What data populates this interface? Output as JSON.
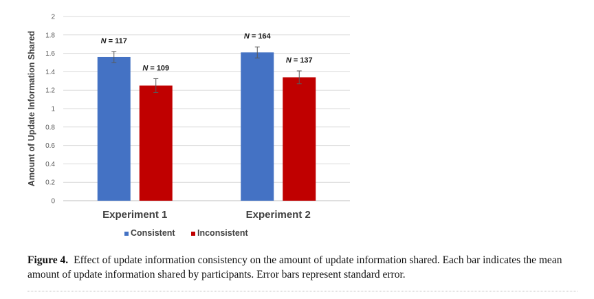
{
  "chart_data": {
    "type": "bar",
    "title": "",
    "xlabel": "",
    "ylabel": "Amount of Update Information Shared",
    "ylim": [
      0,
      2
    ],
    "yticks": [
      0,
      0.2,
      0.4,
      0.6,
      0.8,
      1,
      1.2,
      1.4,
      1.6,
      1.8,
      2
    ],
    "ytick_labels": [
      "0",
      "0.2",
      "0.4",
      "0.6",
      "0.8",
      "1",
      "1.2",
      "1.4",
      "1.6",
      "1.8",
      "2"
    ],
    "grid": true,
    "legend_position": "bottom",
    "categories": [
      "Experiment 1",
      "Experiment 2"
    ],
    "series": [
      {
        "name": "Consistent",
        "color": "#4472C4",
        "values": [
          1.56,
          1.61
        ],
        "errors": [
          0.06,
          0.06
        ],
        "labels": [
          "N = 117",
          "N = 164"
        ]
      },
      {
        "name": "Inconsistent",
        "color": "#C00000",
        "values": [
          1.25,
          1.34
        ],
        "errors": [
          0.075,
          0.07
        ],
        "labels": [
          "N = 109",
          "N = 137"
        ]
      }
    ]
  },
  "caption": {
    "figure_number": "Figure 4.",
    "text": "Effect of update information consistency on the amount of update information shared. Each bar indicates the mean amount of update information shared by participants. Error bars represent standard error."
  }
}
